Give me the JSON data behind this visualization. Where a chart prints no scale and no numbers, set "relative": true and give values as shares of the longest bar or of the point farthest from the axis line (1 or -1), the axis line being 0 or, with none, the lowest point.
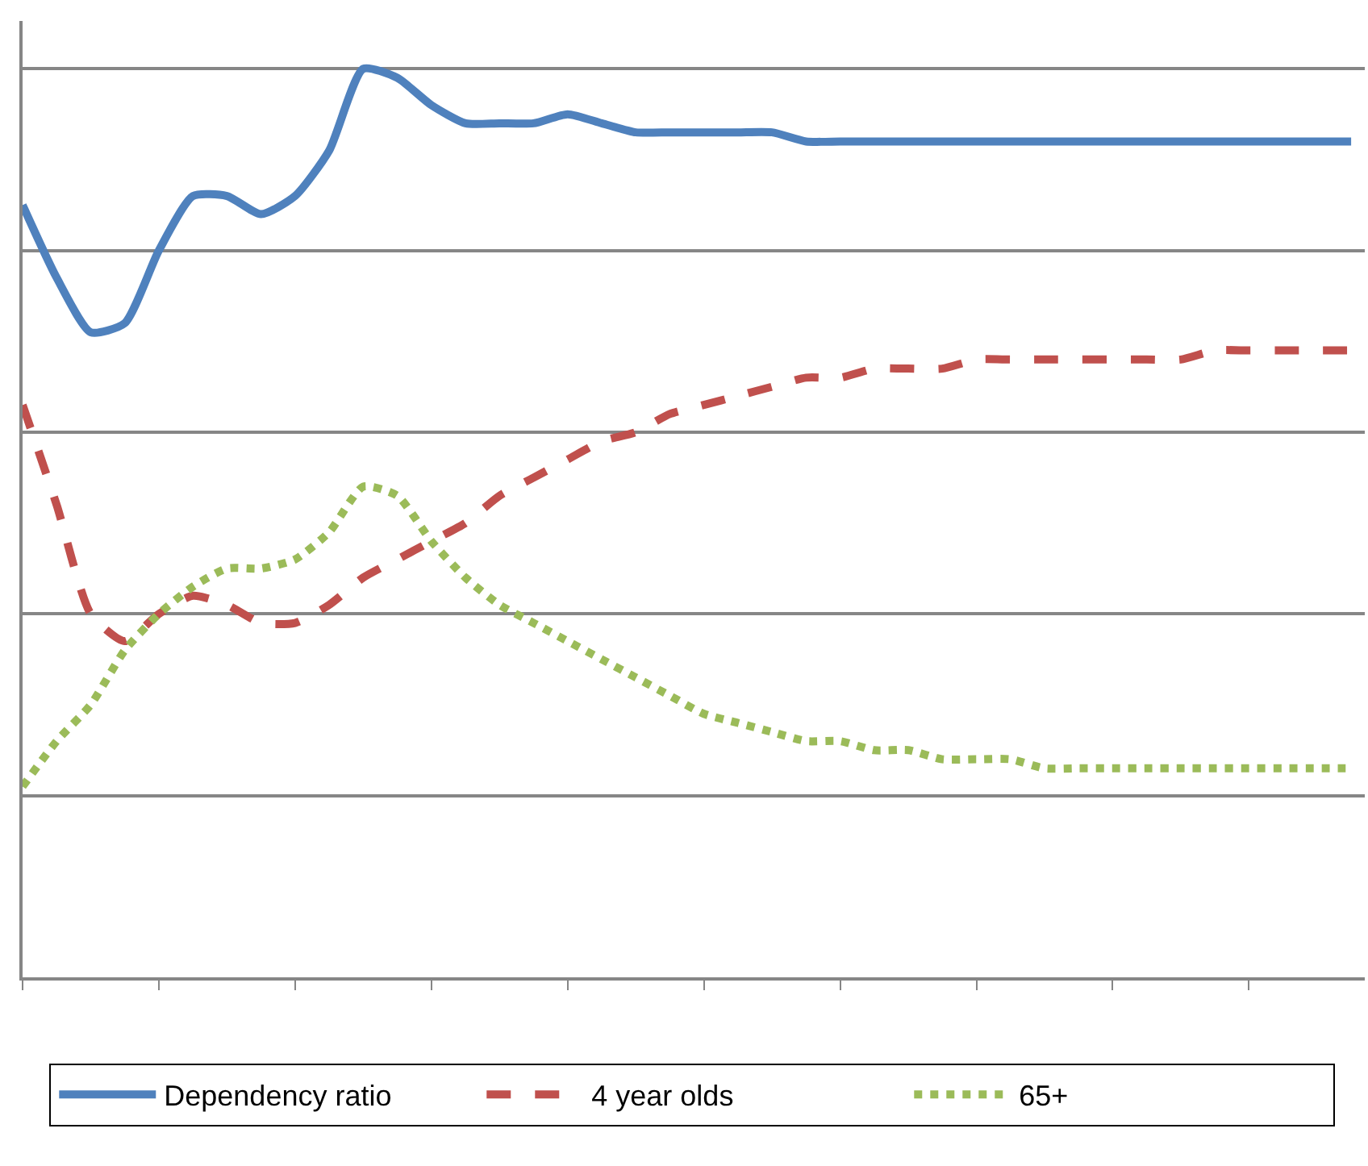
{
  "chart_data": {
    "type": "line",
    "relative": true,
    "categories": [
      null,
      null,
      null,
      null,
      null,
      null,
      null,
      null,
      null,
      null,
      null,
      null,
      null,
      null,
      null,
      null,
      null,
      null,
      null,
      null,
      null,
      null,
      null,
      null,
      null,
      null,
      null,
      null,
      null,
      null,
      null,
      null,
      null,
      null,
      null,
      null,
      null,
      null,
      null,
      null
    ],
    "series": [
      {
        "name": "Dependency ratio",
        "color": "#4f81bd",
        "line_style": "solid",
        "values": [
          0.85,
          0.77,
          0.71,
          0.72,
          0.8,
          0.86,
          0.86,
          0.84,
          0.86,
          0.91,
          1,
          0.99,
          0.96,
          0.94,
          0.94,
          0.94,
          0.95,
          0.94,
          0.93,
          0.93,
          0.93,
          0.93,
          0.93,
          0.92,
          0.92,
          0.92,
          0.92,
          0.92,
          0.92,
          0.92,
          0.92,
          0.92,
          0.92,
          0.92,
          0.92,
          0.92,
          0.92,
          0.92,
          0.92,
          0.92
        ]
      },
      {
        "name": "4 year olds",
        "color": "#c0504d",
        "line_style": "dashed",
        "values": [
          0.63,
          0.52,
          0.4,
          0.37,
          0.4,
          0.42,
          0.41,
          0.39,
          0.39,
          0.41,
          0.44,
          0.46,
          0.48,
          0.5,
          0.53,
          0.55,
          0.57,
          0.59,
          0.6,
          0.62,
          0.63,
          0.64,
          0.65,
          0.66,
          0.66,
          0.67,
          0.67,
          0.67,
          0.68,
          0.68,
          0.68,
          0.68,
          0.68,
          0.68,
          0.68,
          0.69,
          0.69,
          0.69,
          0.69,
          0.69
        ]
      },
      {
        "name": "65+",
        "color": "#9bbb59",
        "line_style": "dotted",
        "values": [
          0.21,
          0.26,
          0.3,
          0.36,
          0.4,
          0.43,
          0.45,
          0.45,
          0.46,
          0.49,
          0.54,
          0.53,
          0.48,
          0.44,
          0.41,
          0.39,
          0.37,
          0.35,
          0.33,
          0.31,
          0.29,
          0.28,
          0.27,
          0.26,
          0.26,
          0.25,
          0.25,
          0.24,
          0.24,
          0.24,
          0.23,
          0.23,
          0.23,
          0.23,
          0.23,
          0.23,
          0.23,
          0.23,
          0.23,
          0.23
        ]
      }
    ],
    "grid": "y",
    "legend": "bottom",
    "marker": "none"
  }
}
